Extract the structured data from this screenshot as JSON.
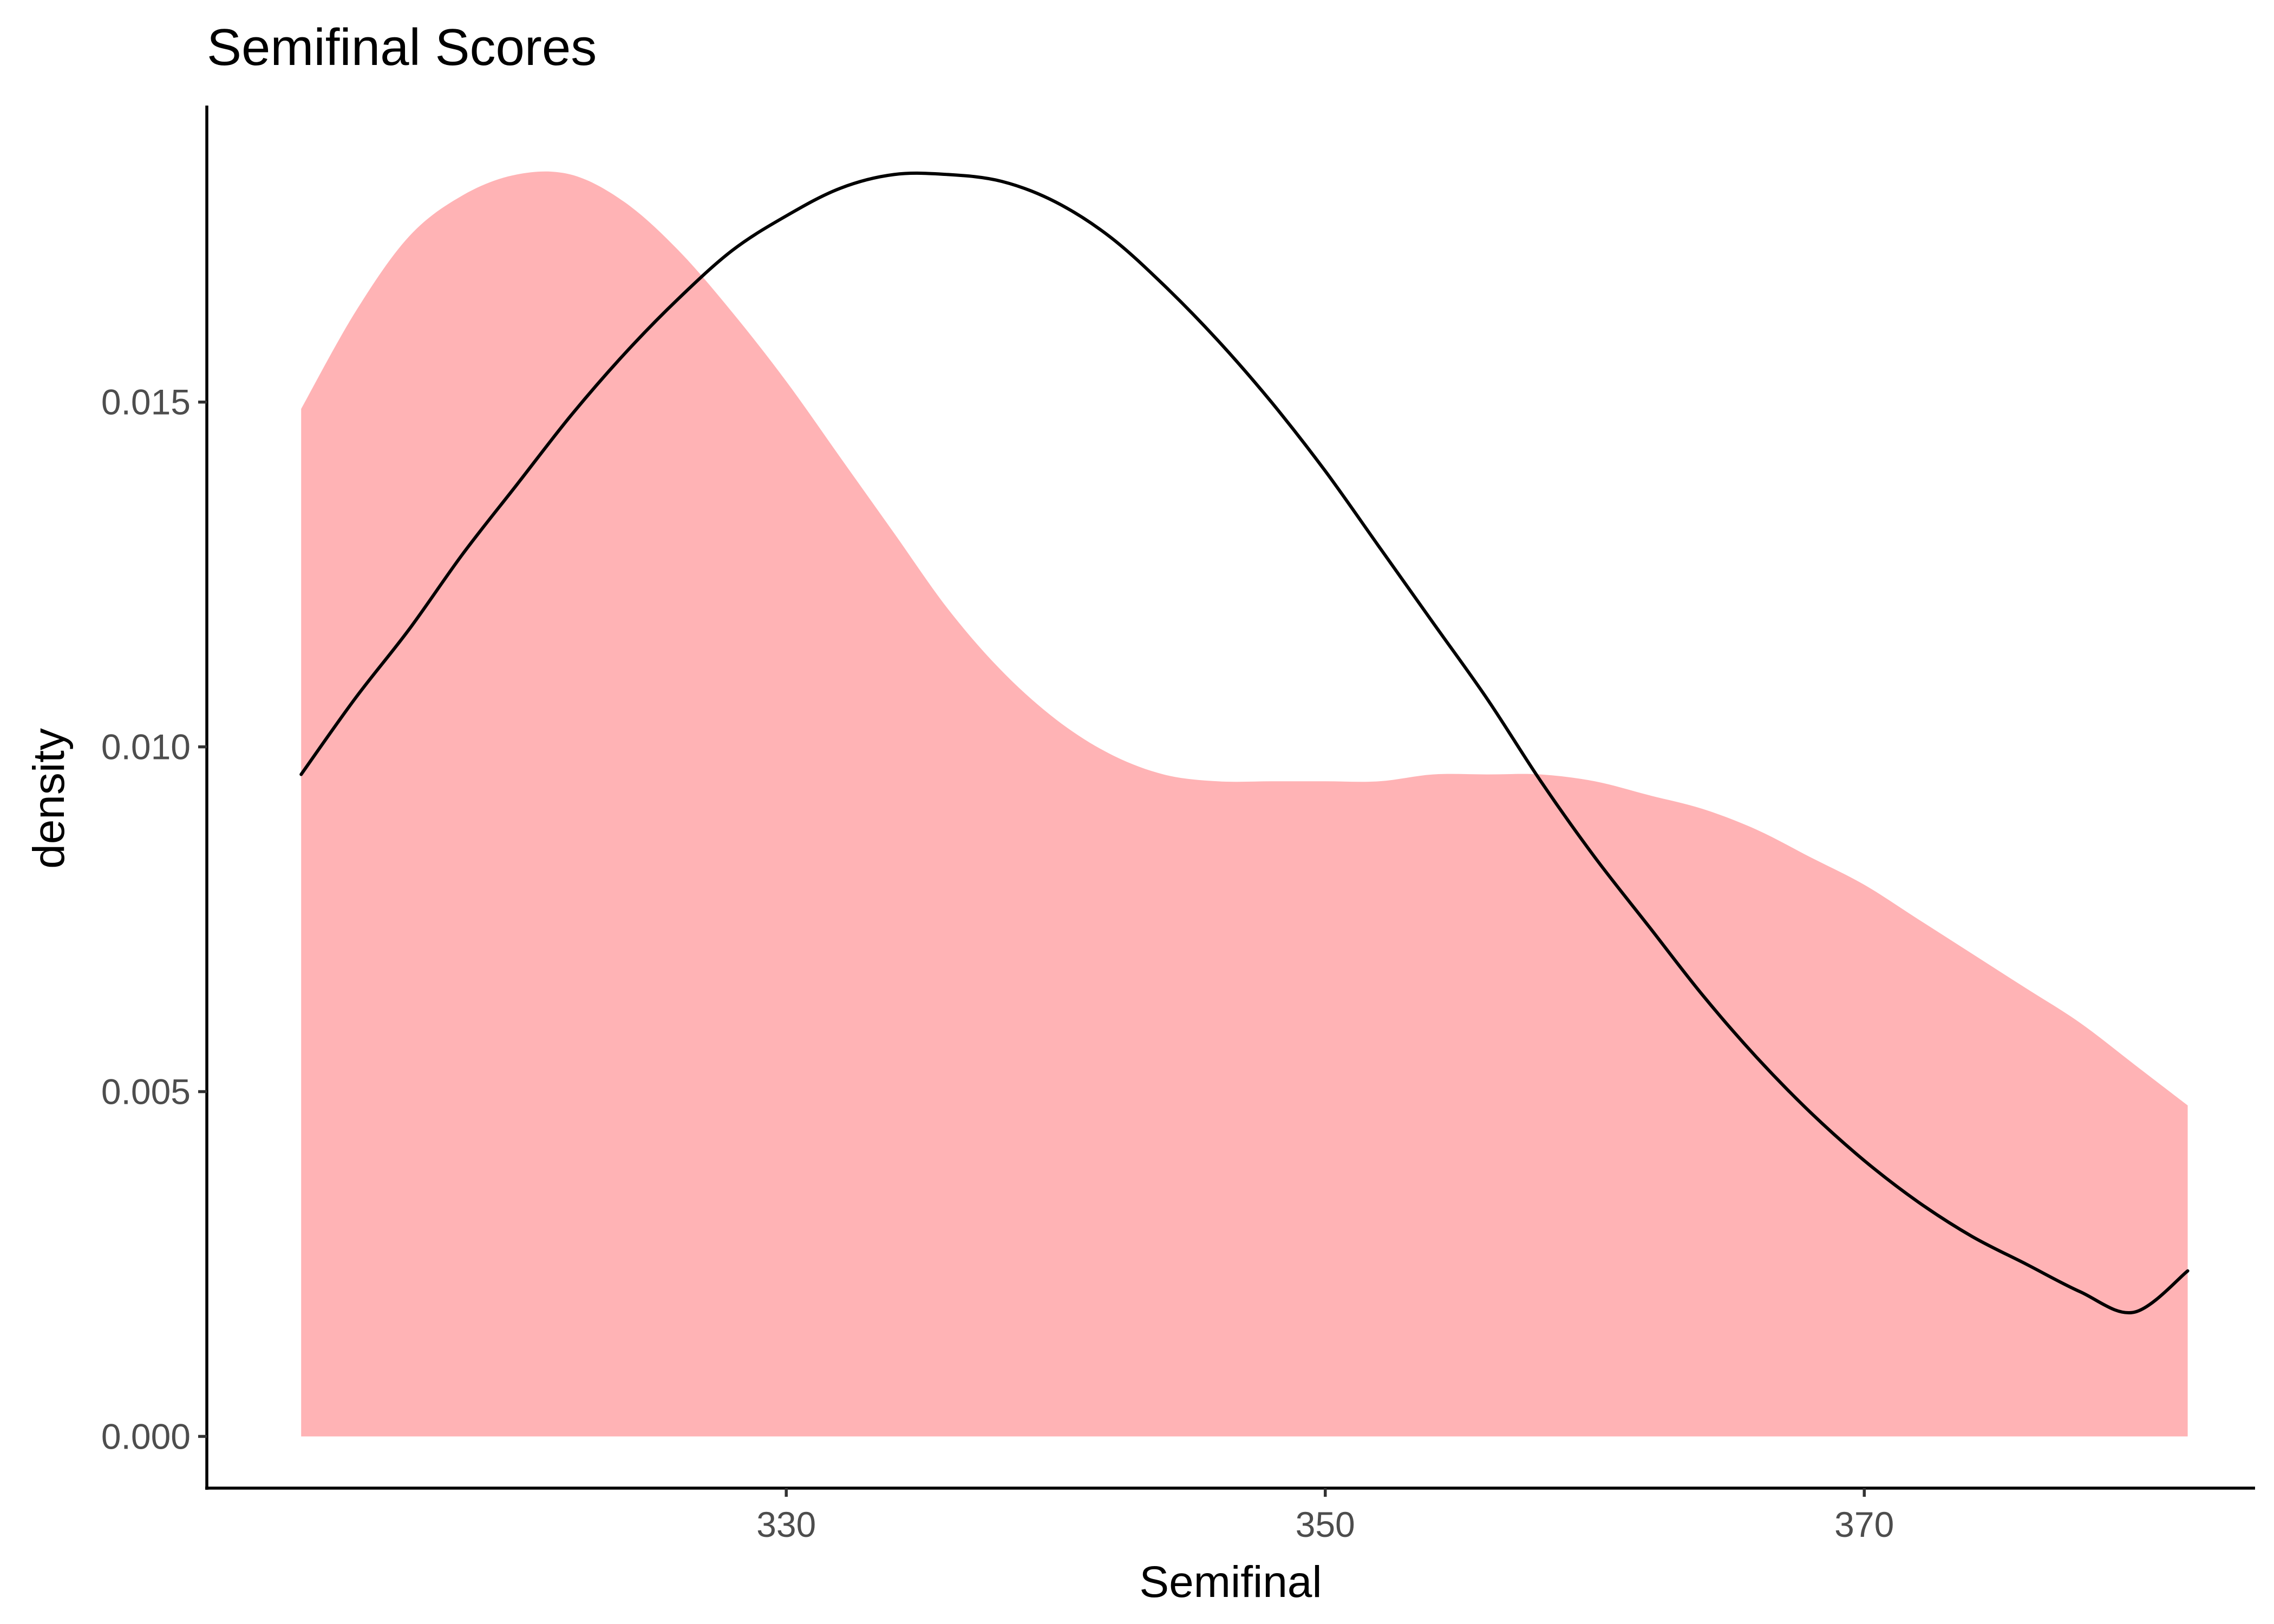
{
  "chart_data": {
    "type": "area",
    "title": "Semifinal Scores",
    "xlabel": "Semifinal",
    "ylabel": "density",
    "xlim": [
      308.5,
      384.5
    ],
    "ylim": [
      -0.00075,
      0.0193
    ],
    "x_ticks": [
      330,
      350,
      370
    ],
    "x_tick_labels": [
      "330",
      "350",
      "370"
    ],
    "y_ticks": [
      0.0,
      0.005,
      0.01,
      0.015
    ],
    "y_tick_labels": [
      "0.000",
      "0.005",
      "0.010",
      "0.015"
    ],
    "grid": false,
    "legend": "none",
    "series": [
      {
        "kind": "density-area",
        "color": "#ffb3b5",
        "x": [
          312,
          314,
          316,
          318,
          320,
          322,
          324,
          326,
          328,
          330,
          332,
          334,
          336,
          338,
          340,
          342,
          344,
          346,
          348,
          350,
          352,
          354,
          356,
          358,
          360,
          362,
          364,
          366,
          368,
          370,
          372,
          374,
          376,
          378,
          380,
          382
        ],
        "y": [
          0.0149,
          0.0163,
          0.0174,
          0.018,
          0.0183,
          0.0183,
          0.0179,
          0.0172,
          0.0163,
          0.0153,
          0.0142,
          0.0131,
          0.012,
          0.0111,
          0.0104,
          0.0099,
          0.0096,
          0.0095,
          0.0095,
          0.0095,
          0.0095,
          0.0096,
          0.0096,
          0.0096,
          0.0095,
          0.0093,
          0.0091,
          0.0088,
          0.0084,
          0.008,
          0.0075,
          0.007,
          0.0065,
          0.006,
          0.0054,
          0.0048
        ]
      },
      {
        "kind": "normal-curve",
        "color": "#000000",
        "x": [
          312,
          314,
          316,
          318,
          320,
          322,
          324,
          326,
          328,
          330,
          332,
          334,
          336,
          338,
          340,
          342,
          344,
          346,
          348,
          350,
          352,
          354,
          356,
          358,
          360,
          362,
          364,
          366,
          368,
          370,
          372,
          374,
          376,
          378,
          380,
          382
        ],
        "y": [
          0.0096,
          0.0107,
          0.0117,
          0.0128,
          0.0138,
          0.0148,
          0.0157,
          0.0165,
          0.0172,
          0.0177,
          0.0181,
          0.0183,
          0.0183,
          0.0182,
          0.0179,
          0.0174,
          0.0167,
          0.0159,
          0.015,
          0.014,
          0.0129,
          0.0118,
          0.0107,
          0.0095,
          0.0084,
          0.0074,
          0.0064,
          0.0055,
          0.0047,
          0.004,
          0.0034,
          0.0029,
          0.0025,
          0.0021,
          0.0018,
          0.0024
        ]
      }
    ]
  }
}
